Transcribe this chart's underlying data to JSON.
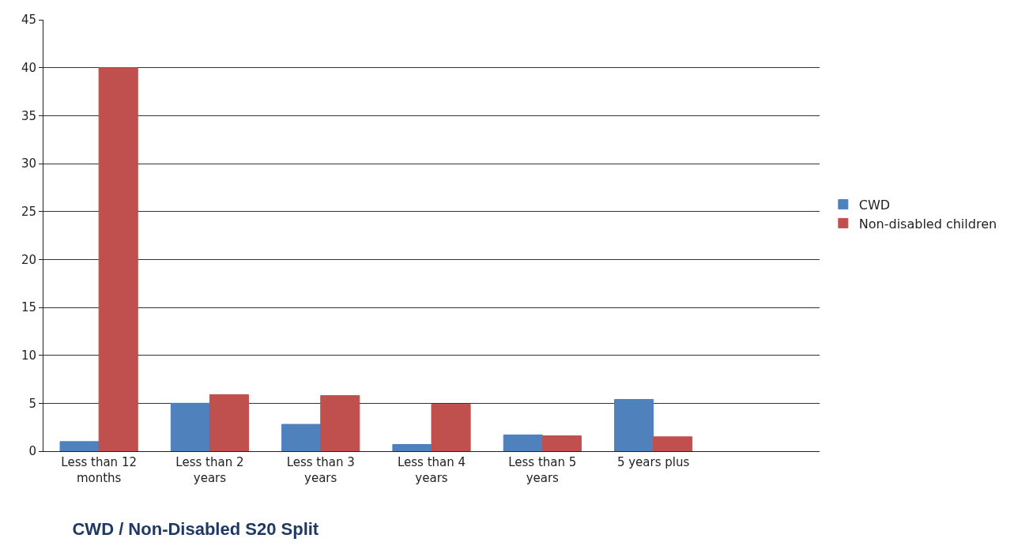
{
  "chart_data": {
    "type": "bar",
    "title": "CWD / Non-Disabled S20 Split",
    "categories": [
      "Less than 12 months",
      "Less than 2 years",
      "Less than 3 years",
      "Less than 4 years",
      "Less than 5 years",
      "5 years plus",
      null
    ],
    "series": [
      {
        "name": "CWD",
        "color": "#4f81bd",
        "values": [
          1,
          5,
          2.8,
          0.7,
          1.7,
          5.4,
          null
        ]
      },
      {
        "name": "Non-disabled children",
        "color": "#c0504d",
        "values": [
          40,
          5.9,
          5.8,
          4.9,
          1.6,
          1.5,
          null
        ]
      }
    ],
    "ylim": [
      0,
      45
    ],
    "yticks": [
      0,
      5,
      10,
      15,
      20,
      25,
      30,
      35,
      40,
      45
    ],
    "grid": "y",
    "legend": "right"
  }
}
